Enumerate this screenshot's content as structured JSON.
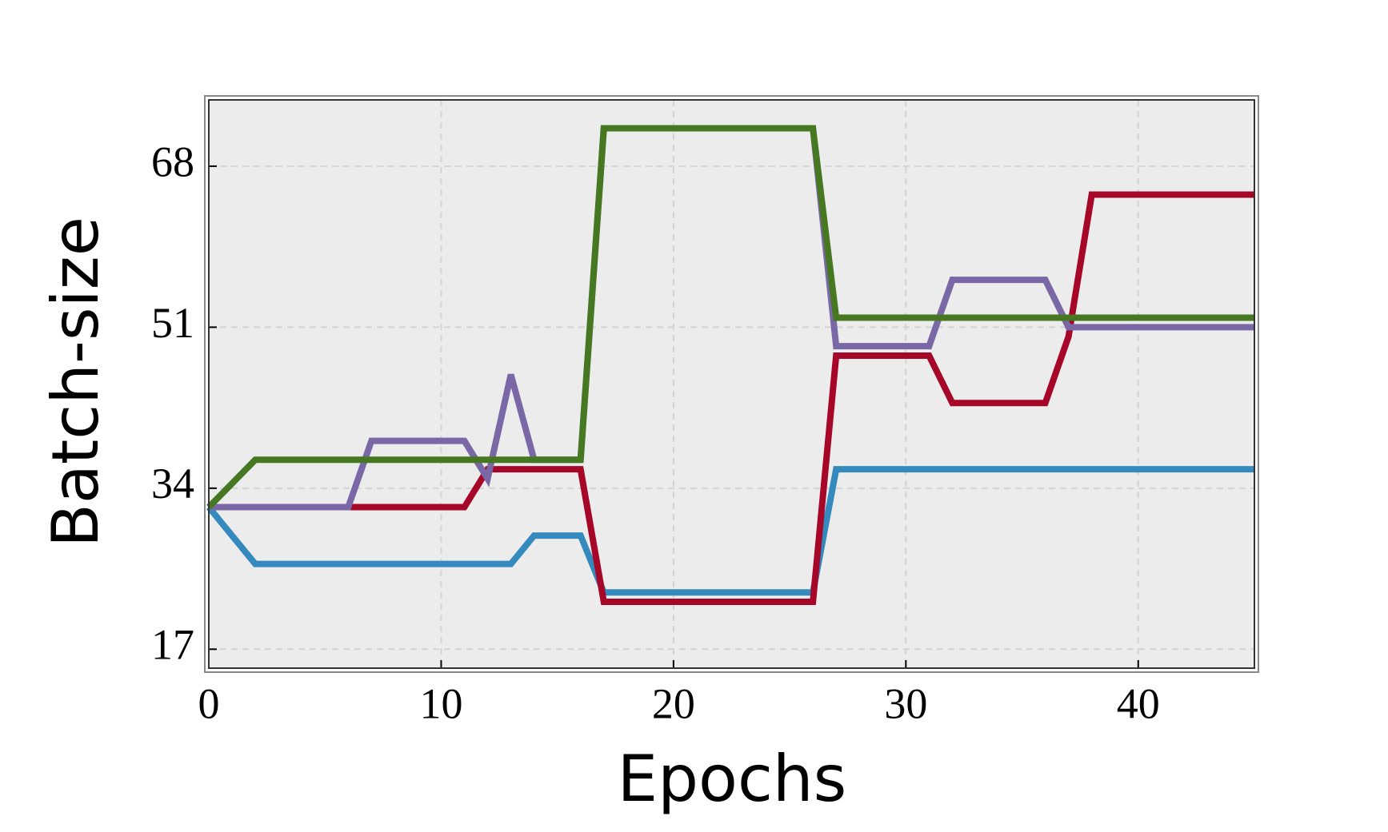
{
  "chart_data": {
    "type": "line",
    "x_label": "Epochs",
    "y_label": "Batch-size",
    "x": [
      0,
      1,
      2,
      3,
      4,
      5,
      6,
      7,
      8,
      9,
      10,
      11,
      12,
      13,
      14,
      15,
      16,
      17,
      18,
      19,
      20,
      21,
      22,
      23,
      24,
      25,
      26,
      27,
      28,
      29,
      30,
      31,
      32,
      33,
      34,
      35,
      36,
      37,
      38,
      39,
      40,
      41,
      42,
      43,
      44,
      45
    ],
    "series": [
      {
        "color": "#348abd",
        "values": [
          32,
          29,
          26,
          26,
          26,
          26,
          26,
          26,
          26,
          26,
          26,
          26,
          26,
          26,
          29,
          29,
          29,
          23,
          23,
          23,
          23,
          23,
          23,
          23,
          23,
          23,
          23,
          36,
          36,
          36,
          36,
          36,
          36,
          36,
          36,
          36,
          36,
          36,
          36,
          36,
          36,
          36,
          36,
          36,
          36,
          36
        ]
      },
      {
        "color": "#a60628",
        "values": [
          32,
          32,
          32,
          32,
          32,
          32,
          32,
          32,
          32,
          32,
          32,
          32,
          36,
          36,
          36,
          36,
          36,
          22,
          22,
          22,
          22,
          22,
          22,
          22,
          22,
          22,
          22,
          48,
          48,
          48,
          48,
          48,
          43,
          43,
          43,
          43,
          43,
          50,
          65,
          65,
          65,
          65,
          65,
          65,
          65,
          65
        ]
      },
      {
        "color": "#7a68a6",
        "values": [
          32,
          32,
          32,
          32,
          32,
          32,
          32,
          39,
          39,
          39,
          39,
          39,
          35,
          46,
          37,
          37,
          37,
          72,
          72,
          72,
          72,
          72,
          72,
          72,
          72,
          72,
          72,
          49,
          49,
          49,
          49,
          49,
          56,
          56,
          56,
          56,
          56,
          51,
          51,
          51,
          51,
          51,
          51,
          51,
          51,
          51
        ]
      },
      {
        "color": "#467821",
        "values": [
          32,
          34.5,
          37,
          37,
          37,
          37,
          37,
          37,
          37,
          37,
          37,
          37,
          37,
          37,
          37,
          37,
          37,
          72,
          72,
          72,
          72,
          72,
          72,
          72,
          72,
          72,
          72,
          52,
          52,
          52,
          52,
          52,
          52,
          52,
          52,
          52,
          52,
          52,
          52,
          52,
          52,
          52,
          52,
          52,
          52,
          52
        ]
      }
    ],
    "xlim": [
      0,
      45
    ],
    "ylim": [
      15,
      75
    ],
    "xticks": [
      0,
      10,
      20,
      30,
      40
    ],
    "yticks": [
      17,
      34,
      51,
      68
    ],
    "grid": true,
    "background": "#ececec"
  }
}
